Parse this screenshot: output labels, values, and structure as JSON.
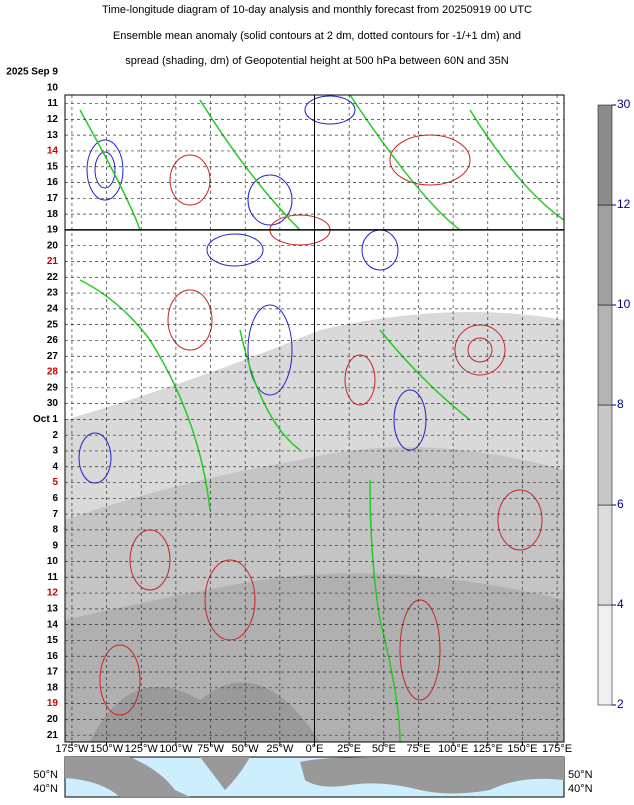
{
  "chart_data": {
    "type": "hovmoller",
    "title": [
      "Time-longitude diagram of 10-day analysis and monthly forecast from 20250919 00 UTC",
      "Ensemble mean anomaly (solid contours at 2 dm, dotted contours for -1/+1 dm) and",
      "spread (shading, dm) of Geopotential height at 500 hPa between 60N and 35N"
    ],
    "dates": [
      {
        "label": "2025 Sep  9",
        "color": "#000000"
      },
      {
        "label": "10",
        "color": "#000000"
      },
      {
        "label": "11",
        "color": "#000000"
      },
      {
        "label": "12",
        "color": "#000000"
      },
      {
        "label": "13",
        "color": "#000000"
      },
      {
        "label": "14",
        "color": "#cc0000"
      },
      {
        "label": "15",
        "color": "#000000"
      },
      {
        "label": "16",
        "color": "#000000"
      },
      {
        "label": "17",
        "color": "#000000"
      },
      {
        "label": "18",
        "color": "#000000"
      },
      {
        "label": "19",
        "color": "#000000"
      },
      {
        "label": "20",
        "color": "#000000"
      },
      {
        "label": "21",
        "color": "#cc0000"
      },
      {
        "label": "22",
        "color": "#000000"
      },
      {
        "label": "23",
        "color": "#000000"
      },
      {
        "label": "24",
        "color": "#000000"
      },
      {
        "label": "25",
        "color": "#000000"
      },
      {
        "label": "26",
        "color": "#000000"
      },
      {
        "label": "27",
        "color": "#000000"
      },
      {
        "label": "28",
        "color": "#cc0000"
      },
      {
        "label": "29",
        "color": "#000000"
      },
      {
        "label": "30",
        "color": "#000000"
      },
      {
        "label": "Oct  1",
        "color": "#000000"
      },
      {
        "label": "2",
        "color": "#000000"
      },
      {
        "label": "3",
        "color": "#000000"
      },
      {
        "label": "4",
        "color": "#000000"
      },
      {
        "label": "5",
        "color": "#cc0000"
      },
      {
        "label": "6",
        "color": "#000000"
      },
      {
        "label": "7",
        "color": "#000000"
      },
      {
        "label": "8",
        "color": "#000000"
      },
      {
        "label": "9",
        "color": "#000000"
      },
      {
        "label": "10",
        "color": "#000000"
      },
      {
        "label": "11",
        "color": "#000000"
      },
      {
        "label": "12",
        "color": "#cc0000"
      },
      {
        "label": "13",
        "color": "#000000"
      },
      {
        "label": "14",
        "color": "#000000"
      },
      {
        "label": "15",
        "color": "#000000"
      },
      {
        "label": "16",
        "color": "#000000"
      },
      {
        "label": "17",
        "color": "#000000"
      },
      {
        "label": "18",
        "color": "#000000"
      },
      {
        "label": "19",
        "color": "#cc0000"
      },
      {
        "label": "20",
        "color": "#000000"
      },
      {
        "label": "21",
        "color": "#000000"
      }
    ],
    "xlim": [
      -180,
      180
    ],
    "xticks": [
      {
        "value": -175,
        "label": "175°W"
      },
      {
        "value": -150,
        "label": "150°W"
      },
      {
        "value": -125,
        "label": "125°W"
      },
      {
        "value": -100,
        "label": "100°W"
      },
      {
        "value": -75,
        "label": "75°W"
      },
      {
        "value": -50,
        "label": "50°W"
      },
      {
        "value": -25,
        "label": "25°W"
      },
      {
        "value": 0,
        "label": "0°E"
      },
      {
        "value": 25,
        "label": "25°E"
      },
      {
        "value": 50,
        "label": "50°E"
      },
      {
        "value": 75,
        "label": "75°E"
      },
      {
        "value": 100,
        "label": "100°E"
      },
      {
        "value": 125,
        "label": "125°E"
      },
      {
        "value": 150,
        "label": "150°E"
      },
      {
        "value": 175,
        "label": "175°E"
      }
    ],
    "colorbar_ticks": [
      2,
      4,
      6,
      8,
      10,
      12,
      30
    ],
    "map_labels": [
      "50°N",
      "40°N"
    ]
  }
}
